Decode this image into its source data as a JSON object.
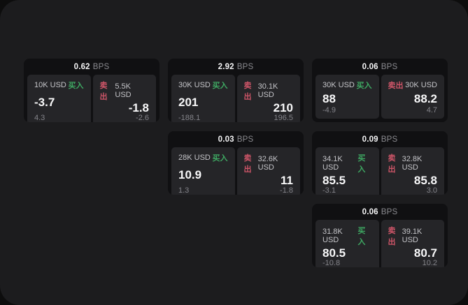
{
  "page": {
    "backdrop_color": "#0d0d0d",
    "surface_color": "#1c1c1e"
  },
  "labels": {
    "bps_suffix": "BPS",
    "buy": "买入",
    "sell": "卖出"
  },
  "colors": {
    "buy": "#3ea862",
    "sell": "#ce5568",
    "card_bg": "#101012",
    "panel_bg": "#252528"
  },
  "cards": [
    {
      "row": 1,
      "col": 1,
      "bps": "0.62",
      "buy": {
        "size": "10K USD",
        "value": "-3.7",
        "sub": "4.3"
      },
      "sell": {
        "size": "5.5K USD",
        "value": "-1.8",
        "sub": "-2.6"
      }
    },
    {
      "row": 1,
      "col": 2,
      "bps": "2.92",
      "buy": {
        "size": "30K USD",
        "value": "201",
        "sub": "-188.1"
      },
      "sell": {
        "size": "30.1K USD",
        "value": "210",
        "sub": "196.5"
      }
    },
    {
      "row": 1,
      "col": 3,
      "bps": "0.06",
      "buy": {
        "size": "30K USD",
        "value": "88",
        "sub": "-4.9"
      },
      "sell": {
        "size": "30K USD",
        "value": "88.2",
        "sub": "4.7"
      }
    },
    {
      "row": 2,
      "col": 2,
      "bps": "0.03",
      "buy": {
        "size": "28K USD",
        "value": "10.9",
        "sub": "1.3"
      },
      "sell": {
        "size": "32.6K USD",
        "value": "11",
        "sub": "-1.8"
      }
    },
    {
      "row": 2,
      "col": 3,
      "bps": "0.09",
      "buy": {
        "size": "34.1K USD",
        "value": "85.5",
        "sub": "-3.1"
      },
      "sell": {
        "size": "32.8K USD",
        "value": "85.8",
        "sub": "3.0"
      }
    },
    {
      "row": 3,
      "col": 3,
      "bps": "0.06",
      "buy": {
        "size": "31.8K USD",
        "value": "80.5",
        "sub": "-10.8"
      },
      "sell": {
        "size": "39.1K USD",
        "value": "80.7",
        "sub": "10.2"
      }
    }
  ]
}
